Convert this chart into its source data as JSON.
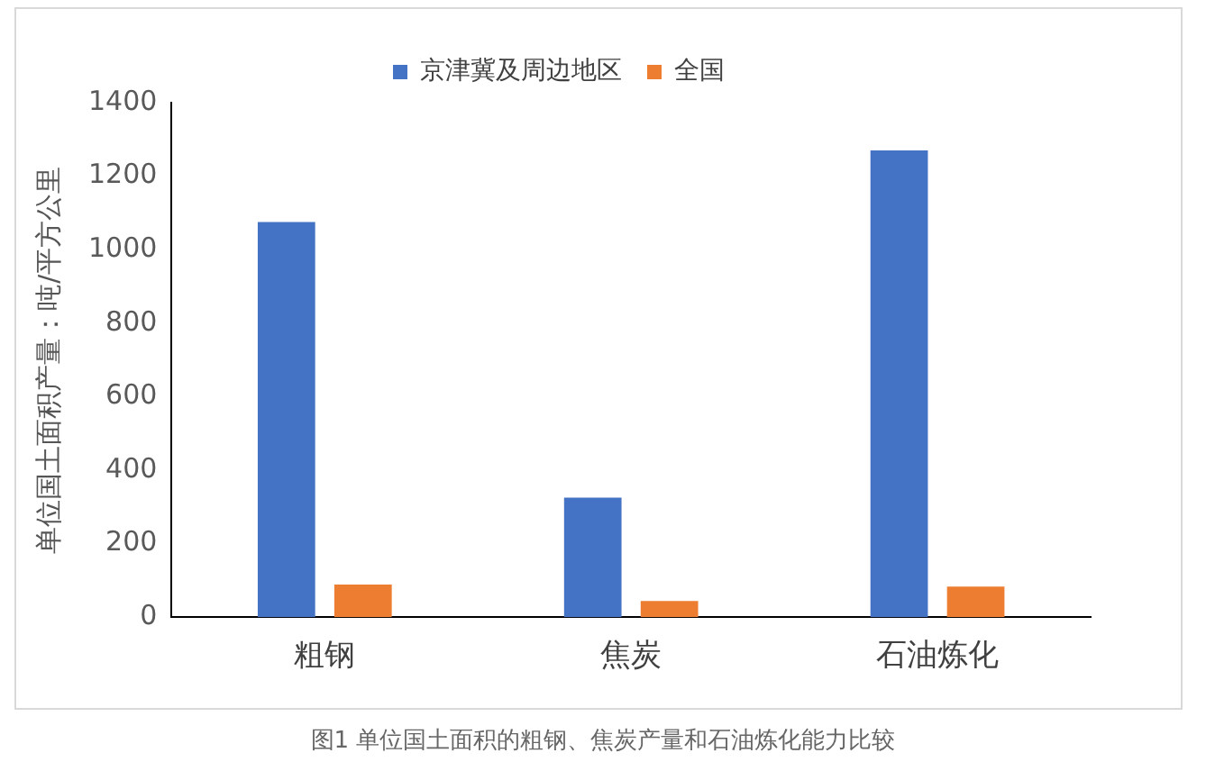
{
  "chart_data": {
    "type": "bar",
    "ylabel": "单位国土面积产量：吨/平方公里",
    "categories": [
      "粗钢",
      "焦炭",
      "石油炼化"
    ],
    "series": [
      {
        "name": "京津冀及周边地区",
        "color": "#4472c4",
        "values": [
          1075,
          325,
          1270
        ]
      },
      {
        "name": "全国",
        "color": "#ed7d31",
        "values": [
          89,
          44,
          83
        ]
      }
    ],
    "ylim": [
      0,
      1400
    ],
    "yticks": [
      0,
      200,
      400,
      600,
      800,
      1000,
      1200,
      1400
    ],
    "grid": false,
    "legend": "top",
    "annotations": [
      "图1 单位国土面积的粗钢、焦炭产量和石油炼化能力比较"
    ]
  }
}
